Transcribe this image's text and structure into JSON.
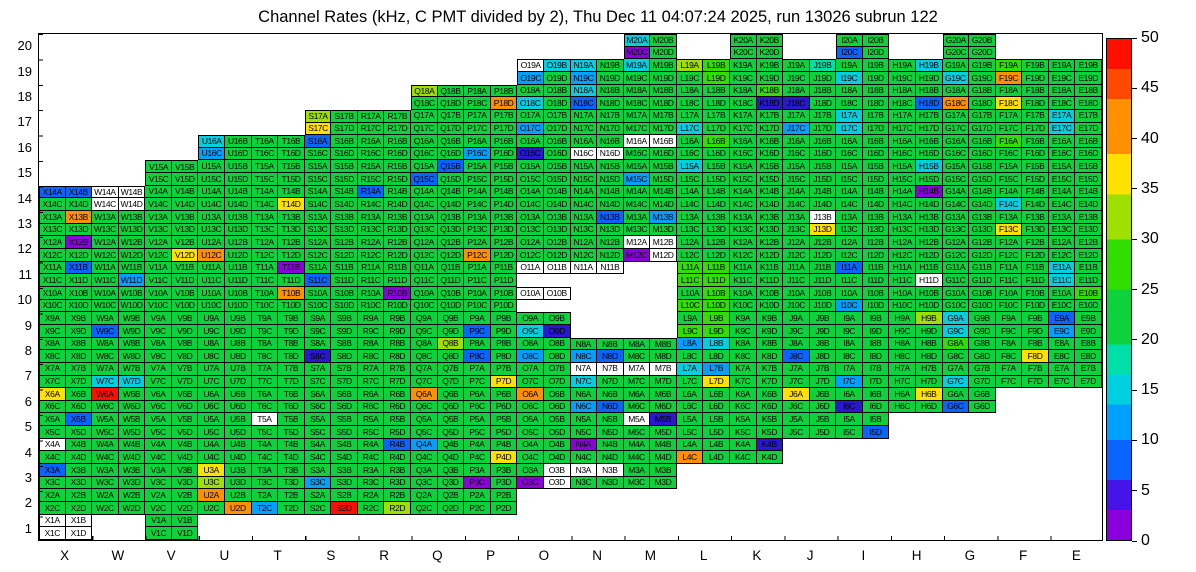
{
  "title": "Channel Rates (kHz, C PMT divided by 2), Thu Dec 11 04:07:24 2025, run 13026 subrun 122",
  "chart_data": {
    "type": "heatmap",
    "unit": "kHz",
    "x_labels": [
      "X",
      "W",
      "V",
      "U",
      "T",
      "S",
      "R",
      "Q",
      "P",
      "O",
      "N",
      "M",
      "L",
      "K",
      "J",
      "I",
      "H",
      "G",
      "F",
      "E"
    ],
    "cell_sublabels": {
      "top": [
        "A",
        "B"
      ],
      "bottom": [
        "C",
        "D"
      ]
    },
    "colorbar": {
      "min": 0,
      "max": 50,
      "ticks": [
        0,
        5,
        10,
        15,
        20,
        25,
        30,
        35,
        40,
        45,
        50
      ]
    },
    "empty_code": ".",
    "code_values": {
      "a": 0,
      "b": 1.5,
      "c": 4,
      "e": 9,
      "f": 12,
      "g": 15,
      "h": 18,
      "i": 22,
      "j": 26,
      "l": 31,
      "m": 35,
      "n": 40,
      "p": 49
    },
    "code_colors": {
      "a": "#ffffff",
      "b": "#8a00dc",
      "c": "#2a18d0",
      "e": "#0a64ff",
      "f": "#00a0ff",
      "g": "#00cfe0",
      "h": "#00dfa8",
      "i": "#0cd33c",
      "j": "#31de00",
      "l": "#9fe000",
      "m": "#ffe100",
      "n": "#ff9000",
      "p": "#ff0f00"
    },
    "rows": [
      {
        "n": 20,
        "ab": [
          "..",
          "..",
          "..",
          "..",
          "..",
          "..",
          "..",
          "..",
          "..",
          "..",
          "..",
          "gi",
          "..",
          "ii",
          "..",
          "ii",
          "..",
          "ii",
          "..",
          ".."
        ],
        "cd": [
          "..",
          "..",
          "..",
          "..",
          "..",
          "..",
          "..",
          "..",
          "..",
          "..",
          "..",
          "bi",
          "..",
          "ii",
          "..",
          "ei",
          "..",
          "ii",
          "..",
          ".."
        ]
      },
      {
        "n": 19,
        "ab": [
          "..",
          "..",
          "..",
          "..",
          "..",
          "..",
          "..",
          "..",
          "..",
          "ag",
          "gi",
          "gi",
          "lj",
          "ii",
          "ih",
          "ii",
          "ig",
          "ii",
          "ji",
          "ii"
        ],
        "cd": [
          "..",
          "..",
          "..",
          "..",
          "..",
          "..",
          "..",
          "..",
          "..",
          "fi",
          "fi",
          "ii",
          "ij",
          "ii",
          "ii",
          "gi",
          "ii",
          "gi",
          "ni",
          "ii"
        ]
      },
      {
        "n": 18,
        "ab": [
          "..",
          "..",
          "..",
          "..",
          "..",
          "..",
          "..",
          "li",
          "ii",
          "ii",
          "gi",
          "ii",
          "ii",
          "ij",
          "ii",
          "ii",
          "ii",
          "ii",
          "ii",
          "ii"
        ],
        "cd": [
          "..",
          "..",
          "..",
          "..",
          "..",
          "..",
          "..",
          "ii",
          "in",
          "gi",
          "ei",
          "ii",
          "ii",
          "ic",
          "ci",
          "ii",
          "ie",
          "ni",
          "mi",
          "ii"
        ]
      },
      {
        "n": 17,
        "ab": [
          "..",
          "..",
          "..",
          "..",
          "..",
          "li",
          "ii",
          "ii",
          "ii",
          "ii",
          "ii",
          "ii",
          "ii",
          "ii",
          "ii",
          "gi",
          "ii",
          "ii",
          "ii",
          "gi"
        ],
        "cd": [
          "..",
          "..",
          "..",
          "..",
          "..",
          "mi",
          "ii",
          "ii",
          "ii",
          "fi",
          "ii",
          "ii",
          "gi",
          "ii",
          "fi",
          "gi",
          "ii",
          "ii",
          "ii",
          "gi"
        ]
      },
      {
        "n": 16,
        "ab": [
          "..",
          "..",
          "..",
          "gi",
          "ii",
          "ei",
          "ii",
          "ii",
          "ii",
          "ii",
          "ii",
          "aa",
          "ij",
          "ii",
          "ii",
          "ii",
          "ii",
          "ii",
          "ji",
          "ii"
        ],
        "cd": [
          "..",
          "..",
          "..",
          "fi",
          "ii",
          "ii",
          "ii",
          "ii",
          "fi",
          "ci",
          "aa",
          "ii",
          "ii",
          "ii",
          "ii",
          "ii",
          "ii",
          "ii",
          "ii",
          "ii"
        ]
      },
      {
        "n": 15,
        "ab": [
          "..",
          "..",
          "ii",
          "ii",
          "ii",
          "ii",
          "ii",
          "ie",
          "ii",
          "ii",
          "ii",
          "ii",
          "gi",
          "ii",
          "ii",
          "ii",
          "ig",
          "ii",
          "ii",
          "ii"
        ],
        "cd": [
          "..",
          "..",
          "ii",
          "ii",
          "ii",
          "ii",
          "ii",
          "ei",
          "ii",
          "ii",
          "ii",
          "fi",
          "ii",
          "ii",
          "ii",
          "ii",
          "ii",
          "ii",
          "ii",
          "ii"
        ]
      },
      {
        "n": 14,
        "ab": [
          "ee",
          "aa",
          "ii",
          "ii",
          "ii",
          "ii",
          "ei",
          "ii",
          "ii",
          "ii",
          "ii",
          "ii",
          "ii",
          "ii",
          "ii",
          "ii",
          "ib",
          "ii",
          "ii",
          "ii"
        ],
        "cd": [
          "ii",
          "aa",
          "ii",
          "ii",
          "im",
          "ii",
          "ii",
          "ii",
          "ii",
          "ii",
          "ii",
          "ii",
          "ii",
          "ii",
          "ii",
          "ii",
          "ii",
          "ii",
          "gi",
          "ii"
        ]
      },
      {
        "n": 13,
        "ab": [
          "in",
          "ii",
          "ii",
          "ii",
          "ii",
          "ii",
          "ii",
          "ii",
          "ii",
          "ii",
          "ie",
          "if",
          "ii",
          "ii",
          "ia",
          "ii",
          "ii",
          "ii",
          "ii",
          "ii"
        ],
        "cd": [
          "ii",
          "ii",
          "ii",
          "ii",
          "ii",
          "ii",
          "ii",
          "ii",
          "ii",
          "ii",
          "ii",
          "ii",
          "ii",
          "ii",
          "im",
          "ii",
          "ii",
          "ii",
          "mi",
          "ii"
        ]
      },
      {
        "n": 12,
        "ab": [
          "ib",
          "ii",
          "ii",
          "ii",
          "ii",
          "ii",
          "ii",
          "ii",
          "ii",
          "ii",
          "ii",
          "aa",
          "ii",
          "ii",
          "ii",
          "ii",
          "ii",
          "ii",
          "ii",
          "ii"
        ],
        "cd": [
          "ii",
          "ii",
          "im",
          "ni",
          "ii",
          "ii",
          "ii",
          "ii",
          "ni",
          "ii",
          "ii",
          "ba",
          "ii",
          "ii",
          "ii",
          "ii",
          "ii",
          "ii",
          "ii",
          "ii"
        ]
      },
      {
        "n": 11,
        "ab": [
          "ie",
          "ii",
          "ii",
          "ii",
          "ib",
          "ii",
          "ii",
          "ii",
          "ii",
          "aa",
          "aa",
          "..",
          "jj",
          "ii",
          "ii",
          "ei",
          "ii",
          "ii",
          "ii",
          "gi"
        ],
        "cd": [
          "ii",
          "if",
          "ii",
          "ii",
          "ii",
          "ei",
          "ii",
          "ii",
          "ii",
          "..",
          "..",
          "..",
          "jj",
          "ii",
          "ii",
          "ii",
          "ia",
          "ii",
          "ii",
          "gi"
        ]
      },
      {
        "n": 10,
        "ab": [
          "ii",
          "ii",
          "ii",
          "ii",
          "in",
          "ii",
          "ib",
          "ii",
          "ii",
          "aa",
          "..",
          "..",
          "ij",
          "ii",
          "ii",
          "ii",
          "ii",
          "ii",
          "ii",
          "ij"
        ],
        "cd": [
          "ii",
          "ii",
          "ii",
          "ii",
          "ii",
          "ii",
          "ii",
          "ii",
          "ii",
          "..",
          "..",
          "..",
          "jj",
          "ii",
          "ii",
          "fi",
          "ii",
          "ii",
          "ii",
          "ii"
        ]
      },
      {
        "n": 9,
        "ab": [
          "ii",
          "ii",
          "ii",
          "ii",
          "ii",
          "ii",
          "ii",
          "ii",
          "ii",
          "ii",
          "..",
          "..",
          "ij",
          "ii",
          "ii",
          "ii",
          "il",
          "gi",
          "ii",
          "ei"
        ],
        "cd": [
          "ii",
          "ei",
          "ii",
          "ii",
          "ii",
          "ii",
          "ii",
          "ii",
          "ei",
          "gc",
          "..",
          "..",
          "jj",
          "ii",
          "ii",
          "ii",
          "ii",
          "gi",
          "ii",
          "fi"
        ]
      },
      {
        "n": 8,
        "ab": [
          "ii",
          "ii",
          "ii",
          "ii",
          "ii",
          "ii",
          "ii",
          "il",
          "ii",
          "ii",
          "ii",
          "ii",
          "fg",
          "ii",
          "ii",
          "ii",
          "ii",
          "ji",
          "ii",
          "ii"
        ],
        "cd": [
          "ii",
          "ii",
          "ii",
          "ii",
          "ii",
          "ci",
          "ii",
          "ii",
          "ei",
          "fi",
          "fe",
          "ii",
          "ii",
          "ii",
          "ei",
          "ii",
          "ii",
          "ii",
          "im",
          "ii"
        ]
      },
      {
        "n": 7,
        "ab": [
          "ii",
          "ii",
          "ii",
          "ii",
          "ii",
          "ii",
          "ii",
          "ii",
          "ii",
          "ii",
          "aa",
          "aa",
          "gf",
          "ii",
          "ii",
          "ii",
          "ii",
          "ii",
          "ii",
          "ii"
        ],
        "cd": [
          "ii",
          "gg",
          "ii",
          "ii",
          "ii",
          "ii",
          "ii",
          "ii",
          "im",
          "ii",
          "gi",
          "ii",
          "im",
          "ii",
          "ii",
          "fi",
          "ii",
          "gi",
          "ii",
          "ii"
        ]
      },
      {
        "n": 6,
        "ab": [
          "mi",
          "pi",
          "ii",
          "ii",
          "ii",
          "ii",
          "ii",
          "ni",
          "ii",
          "ni",
          "ii",
          "ii",
          "ii",
          "ii",
          "mi",
          "ii",
          "im",
          "ii",
          "..",
          ".."
        ],
        "cd": [
          "ii",
          "ii",
          "ii",
          "ii",
          "ii",
          "ii",
          "ii",
          "ii",
          "ii",
          "ii",
          "fe",
          "ii",
          "ii",
          "ii",
          "ii",
          "ci",
          "ii",
          "ei",
          "..",
          ".."
        ]
      },
      {
        "n": 5,
        "ab": [
          "ie",
          "ii",
          "ii",
          "ii",
          "ai",
          "ii",
          "ii",
          "ii",
          "ii",
          "ii",
          "ii",
          "ac",
          "ii",
          "ii",
          "ii",
          "ii",
          "..",
          "..",
          "..",
          ".."
        ],
        "cd": [
          "ii",
          "ii",
          "ii",
          "ii",
          "ii",
          "ii",
          "ii",
          "ii",
          "ii",
          "ii",
          "ii",
          "ii",
          "ii",
          "ii",
          "ii",
          "ie",
          "..",
          "..",
          "..",
          ".."
        ]
      },
      {
        "n": 4,
        "ab": [
          "ai",
          "ii",
          "ii",
          "ii",
          "ii",
          "ii",
          "ie",
          "fi",
          "ii",
          "ii",
          "bi",
          "ii",
          "ii",
          "ic",
          "..",
          "..",
          "..",
          "..",
          "..",
          ".."
        ],
        "cd": [
          "ii",
          "ii",
          "ii",
          "ii",
          "ii",
          "ii",
          "ii",
          "ii",
          "im",
          "ii",
          "ii",
          "ii",
          "ni",
          "ii",
          "..",
          "..",
          "..",
          "..",
          "..",
          ".."
        ]
      },
      {
        "n": 3,
        "ab": [
          "ei",
          "ii",
          "ii",
          "mi",
          "ii",
          "ii",
          "ii",
          "ii",
          "ii",
          "ia",
          "aa",
          "ii",
          "..",
          "..",
          "..",
          "..",
          "..",
          "..",
          "..",
          ".."
        ],
        "cd": [
          "ii",
          "ii",
          "ii",
          "li",
          "ii",
          "fi",
          "ii",
          "ii",
          "bi",
          "ba",
          "ii",
          "ii",
          "..",
          "..",
          "..",
          "..",
          "..",
          "..",
          "..",
          ".."
        ]
      },
      {
        "n": 2,
        "ab": [
          "ii",
          "ii",
          "ii",
          "ni",
          "ii",
          "ii",
          "ii",
          "ii",
          "ii",
          "..",
          "..",
          "..",
          "..",
          "..",
          "..",
          "..",
          "..",
          "..",
          "..",
          ".."
        ],
        "cd": [
          "ii",
          "ii",
          "ii",
          "in",
          "fi",
          "ip",
          "il",
          "ii",
          "ii",
          "..",
          "..",
          "..",
          "..",
          "..",
          "..",
          "..",
          "..",
          "..",
          "..",
          ".."
        ]
      },
      {
        "n": 1,
        "ab": [
          "aa",
          "..",
          "ii",
          "..",
          "..",
          "..",
          "..",
          "..",
          "..",
          "..",
          "..",
          "..",
          "..",
          "..",
          "..",
          "..",
          "..",
          "..",
          "..",
          ".."
        ],
        "cd": [
          "aa",
          "..",
          "ii",
          "..",
          "..",
          "..",
          "..",
          "..",
          "..",
          "..",
          "..",
          "..",
          "..",
          "..",
          "..",
          "..",
          "..",
          "..",
          "..",
          ".."
        ]
      }
    ]
  }
}
